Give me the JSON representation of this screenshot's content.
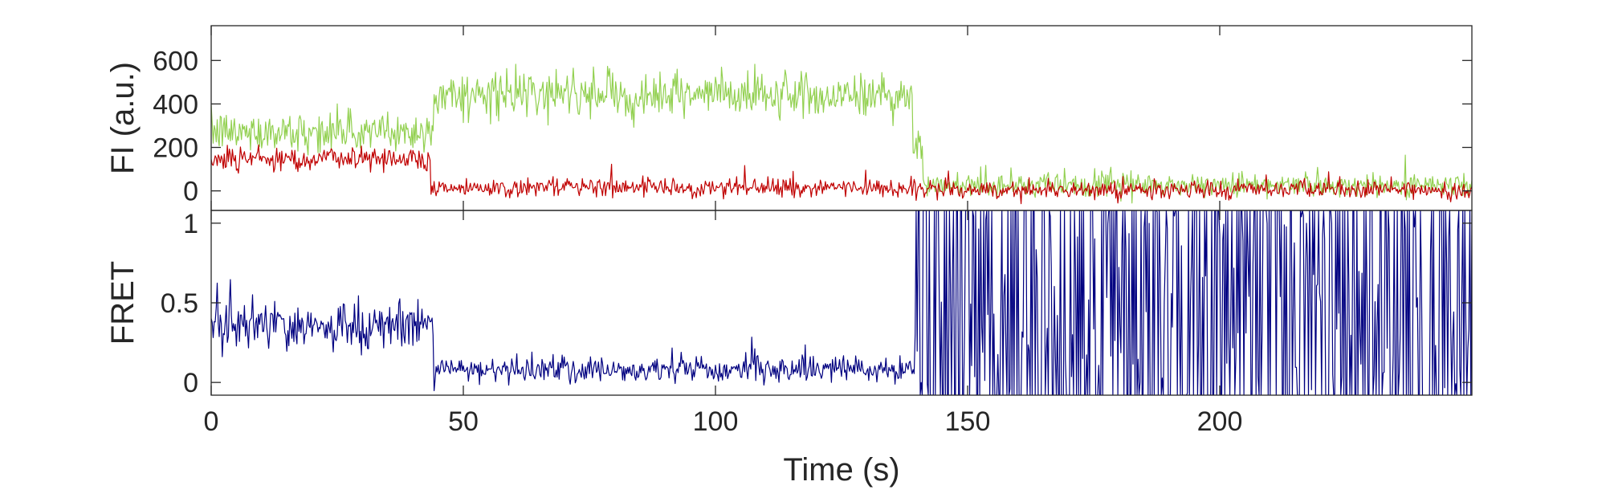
{
  "chart_data": [
    {
      "type": "line",
      "panel": "top",
      "ylabel": "FI (a.u.)",
      "xlabel": "",
      "xlim": [
        0,
        250
      ],
      "ylim": [
        -90,
        760
      ],
      "yticks": [
        0,
        200,
        400,
        600
      ],
      "ytick_labels": [
        "0",
        "200",
        "400",
        "600"
      ],
      "xticks": [
        0,
        50,
        100,
        150,
        200
      ],
      "xtick_labels": [],
      "grid": false,
      "series": [
        {
          "color": "#92d050",
          "segments": [
            {
              "t_start": 0,
              "t_end": 44,
              "mean": 270,
              "noise": 75
            },
            {
              "t_start": 44,
              "t_end": 139,
              "mean": 440,
              "noise": 85
            },
            {
              "t_start": 139,
              "t_end": 141,
              "mean": 200,
              "noise": 60
            },
            {
              "t_start": 141,
              "t_end": 250,
              "mean": 25,
              "noise": 45
            }
          ],
          "values_sample": [
            [
              0,
              270
            ],
            [
              20,
              290
            ],
            [
              44,
              320
            ],
            [
              45,
              450
            ],
            [
              80,
              450
            ],
            [
              100,
              460
            ],
            [
              130,
              440
            ],
            [
              139,
              430
            ],
            [
              141,
              40
            ],
            [
              180,
              25
            ],
            [
              220,
              30
            ],
            [
              250,
              25
            ]
          ]
        },
        {
          "color": "#c00000",
          "segments": [
            {
              "t_start": 0,
              "t_end": 43.5,
              "mean": 150,
              "noise": 45
            },
            {
              "t_start": 43.5,
              "t_end": 139,
              "mean": 15,
              "noise": 35
            },
            {
              "t_start": 139,
              "t_end": 250,
              "mean": 5,
              "noise": 35
            }
          ],
          "values_sample": [
            [
              0,
              130
            ],
            [
              20,
              150
            ],
            [
              40,
              160
            ],
            [
              43.5,
              170
            ],
            [
              44,
              10
            ],
            [
              100,
              15
            ],
            [
              139,
              20
            ],
            [
              150,
              5
            ],
            [
              200,
              0
            ],
            [
              250,
              5
            ]
          ]
        }
      ]
    },
    {
      "type": "line",
      "panel": "bottom",
      "ylabel": "FRET",
      "xlabel": "Time (s)",
      "xlim": [
        0,
        250
      ],
      "ylim": [
        -0.08,
        1.08
      ],
      "yticks": [
        0,
        0.5,
        1
      ],
      "ytick_labels": [
        "0",
        "0.5",
        "1"
      ],
      "xticks": [
        0,
        50,
        100,
        150,
        200
      ],
      "xtick_labels": [
        "0",
        "50",
        "100",
        "150",
        "200"
      ],
      "grid": false,
      "series": [
        {
          "color": "#000080",
          "segments": [
            {
              "t_start": 0,
              "t_end": 44,
              "mean": 0.35,
              "noise": 0.12
            },
            {
              "t_start": 44,
              "t_end": 139.5,
              "mean": 0.08,
              "noise": 0.07
            },
            {
              "t_start": 139.5,
              "t_end": 250,
              "mean": 0.5,
              "noise": 0.5,
              "behavior": "rapid switching between 0 and 1 (noise-dominated)"
            }
          ],
          "values_sample": [
            [
              0,
              0.3
            ],
            [
              20,
              0.38
            ],
            [
              40,
              0.37
            ],
            [
              44,
              0.35
            ],
            [
              45,
              0.05
            ],
            [
              100,
              0.08
            ],
            [
              139,
              0.05
            ],
            [
              140,
              1.0
            ],
            [
              200,
              0.5
            ],
            [
              250,
              0.5
            ]
          ]
        }
      ]
    }
  ]
}
